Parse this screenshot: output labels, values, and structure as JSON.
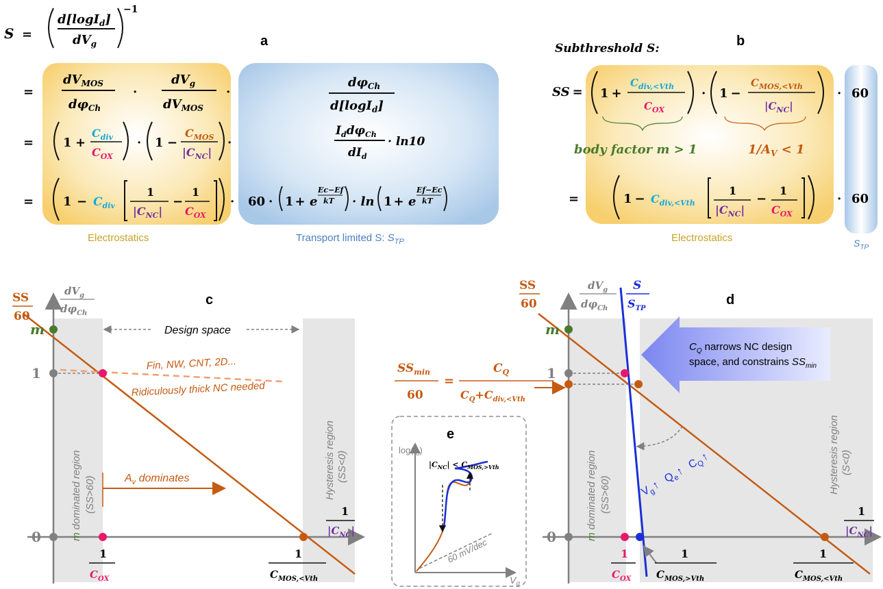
{
  "colors": {
    "orange": "#c55a11",
    "blue": "#1a2fd8",
    "cyan": "#16a9d8",
    "magenta": "#e8186a",
    "purple": "#7030a0",
    "green": "#4a7a2c",
    "gold": "#c9a227",
    "grey": "#808080",
    "steel": "#4a7fbf",
    "salmon": "#f0a070"
  },
  "panel_labels": {
    "a": "a",
    "b": "b",
    "c": "c",
    "d": "d",
    "e": "e"
  },
  "eq_a": {
    "lhs": "S",
    "equals": "=",
    "dlog": "d[logI",
    "dlog_sub": "d",
    "dlog_close": "]",
    "dVg": "dV",
    "dVg_sub": "g",
    "inv_exp": "−1",
    "row1": {
      "num1": "dV",
      "num1_sub": "MOS",
      "den1": "dφ",
      "den1_sub": "Ch",
      "dot": "·",
      "num2": "dV",
      "num2_sub": "g",
      "den2": "dV",
      "den2_sub": "MOS",
      "num3": "dφ",
      "num3_sub": "Ch",
      "den3": "d[logI",
      "den3_sub": "d",
      "den3_close": "]"
    },
    "row2": {
      "one": "1",
      "plus": "+",
      "minus": "−",
      "cdiv": "C",
      "cdiv_sub": "div",
      "cox": "C",
      "cox_sub": "OX",
      "cmos": "C",
      "cmos_sub": "MOS",
      "cnc": "|C",
      "cnc_sub": "NC",
      "cnc_close": "|",
      "tp_num": "I",
      "tp_num_sub": "d",
      "tp_num2": "dφ",
      "tp_num2_sub": "Ch",
      "tp_den": "dI",
      "tp_den_sub": "d",
      "ln10": "· ln10"
    },
    "row3": {
      "sixty": "60",
      "e": "e",
      "ln": "· ln",
      "exp1": "Ec−Ef",
      "exp2": "Ef−Ec",
      "kT": "kT"
    },
    "electrostatics": "Electrostatics",
    "transport": "Transport limited S: ",
    "transport_sym": "S",
    "transport_sub": "TP"
  },
  "eq_b": {
    "title": "Subthreshold S",
    "title_colon": ":",
    "ss": "SS",
    "equals": "=",
    "cdiv_vth_sub": "div,<Vth",
    "cmos_vth_sub": "MOS,<Vth",
    "sixty": "60",
    "body_factor": "body factor m > 1",
    "inv_av": "1/A",
    "inv_av_sub": "V",
    "inv_av_rest": " < 1",
    "electrostatics": "Electrostatics",
    "stp": "S",
    "stp_sub": "TP"
  },
  "panel_c": {
    "y_label_ss": "SS",
    "y_label_60": "60",
    "y_label_dvg": "dV",
    "y_label_dvg_sub": "g",
    "y_label_dphi": "dφ",
    "y_label_dphi_sub": "Ch",
    "tick_m": "m",
    "tick_1": "1",
    "tick_0": "0",
    "design_space": "Design space",
    "fin_note": "Fin, NW, CNT, 2D...",
    "thick_note": "Ridiculously thick NC needed",
    "m_region_1": "m",
    "m_region_2": " dominated region",
    "m_region_3": "(SS>60)",
    "hyst_1": "Hysteresis region",
    "hyst_2": "(SS<0)",
    "av_dominates": "A",
    "av_sub": "v",
    "av_rest": " dominates",
    "x_cox": "C",
    "x_cox_sub": "OX",
    "x_cmos": "C",
    "x_cmos_sub": "MOS,<Vth",
    "x_axis_cnc": "|C",
    "x_axis_cnc_sub": "NC",
    "x_one": "1"
  },
  "panel_d": {
    "ssmin": "SS",
    "ssmin_sub": "min",
    "ssmin_60": "60",
    "eq": "=",
    "cq": "C",
    "cq_sub": "Q",
    "cq_plus": "+",
    "cdiv_sub": "div,<Vth",
    "s_label": "S",
    "stp_label": "S",
    "stp_sub": "TP",
    "banner_1": "narrows NC design",
    "banner_2": "space, and constrains",
    "banner_cq": "C",
    "banner_cq_sub": "Q",
    "banner_ss": "SS",
    "banner_ss_sub": "min",
    "m_region_1": "m",
    "m_region_2": " dominated region",
    "m_region_3": "(SS>60)",
    "hyst_1": "Hysteresis region",
    "hyst_2": "(S<0)",
    "arrows": [
      "V",
      "Q",
      "C"
    ],
    "arrows_sub": [
      "g",
      "e",
      "Q"
    ],
    "up": "↑",
    "x_cmos_gt_sub": "MOS,>Vth",
    "x_cmos_lt_sub": "MOS,<Vth"
  },
  "panel_e": {
    "ylabel": "log(I",
    "ylabel_sub": "d",
    "ylabel_close": ")",
    "xlabel": "V",
    "xlabel_sub": "g",
    "cond": "|C",
    "cond_sub": "NC",
    "cond_mid": "| < C",
    "cond_sub2": "MOS,>Vth",
    "slope": "60 mV/dec"
  }
}
